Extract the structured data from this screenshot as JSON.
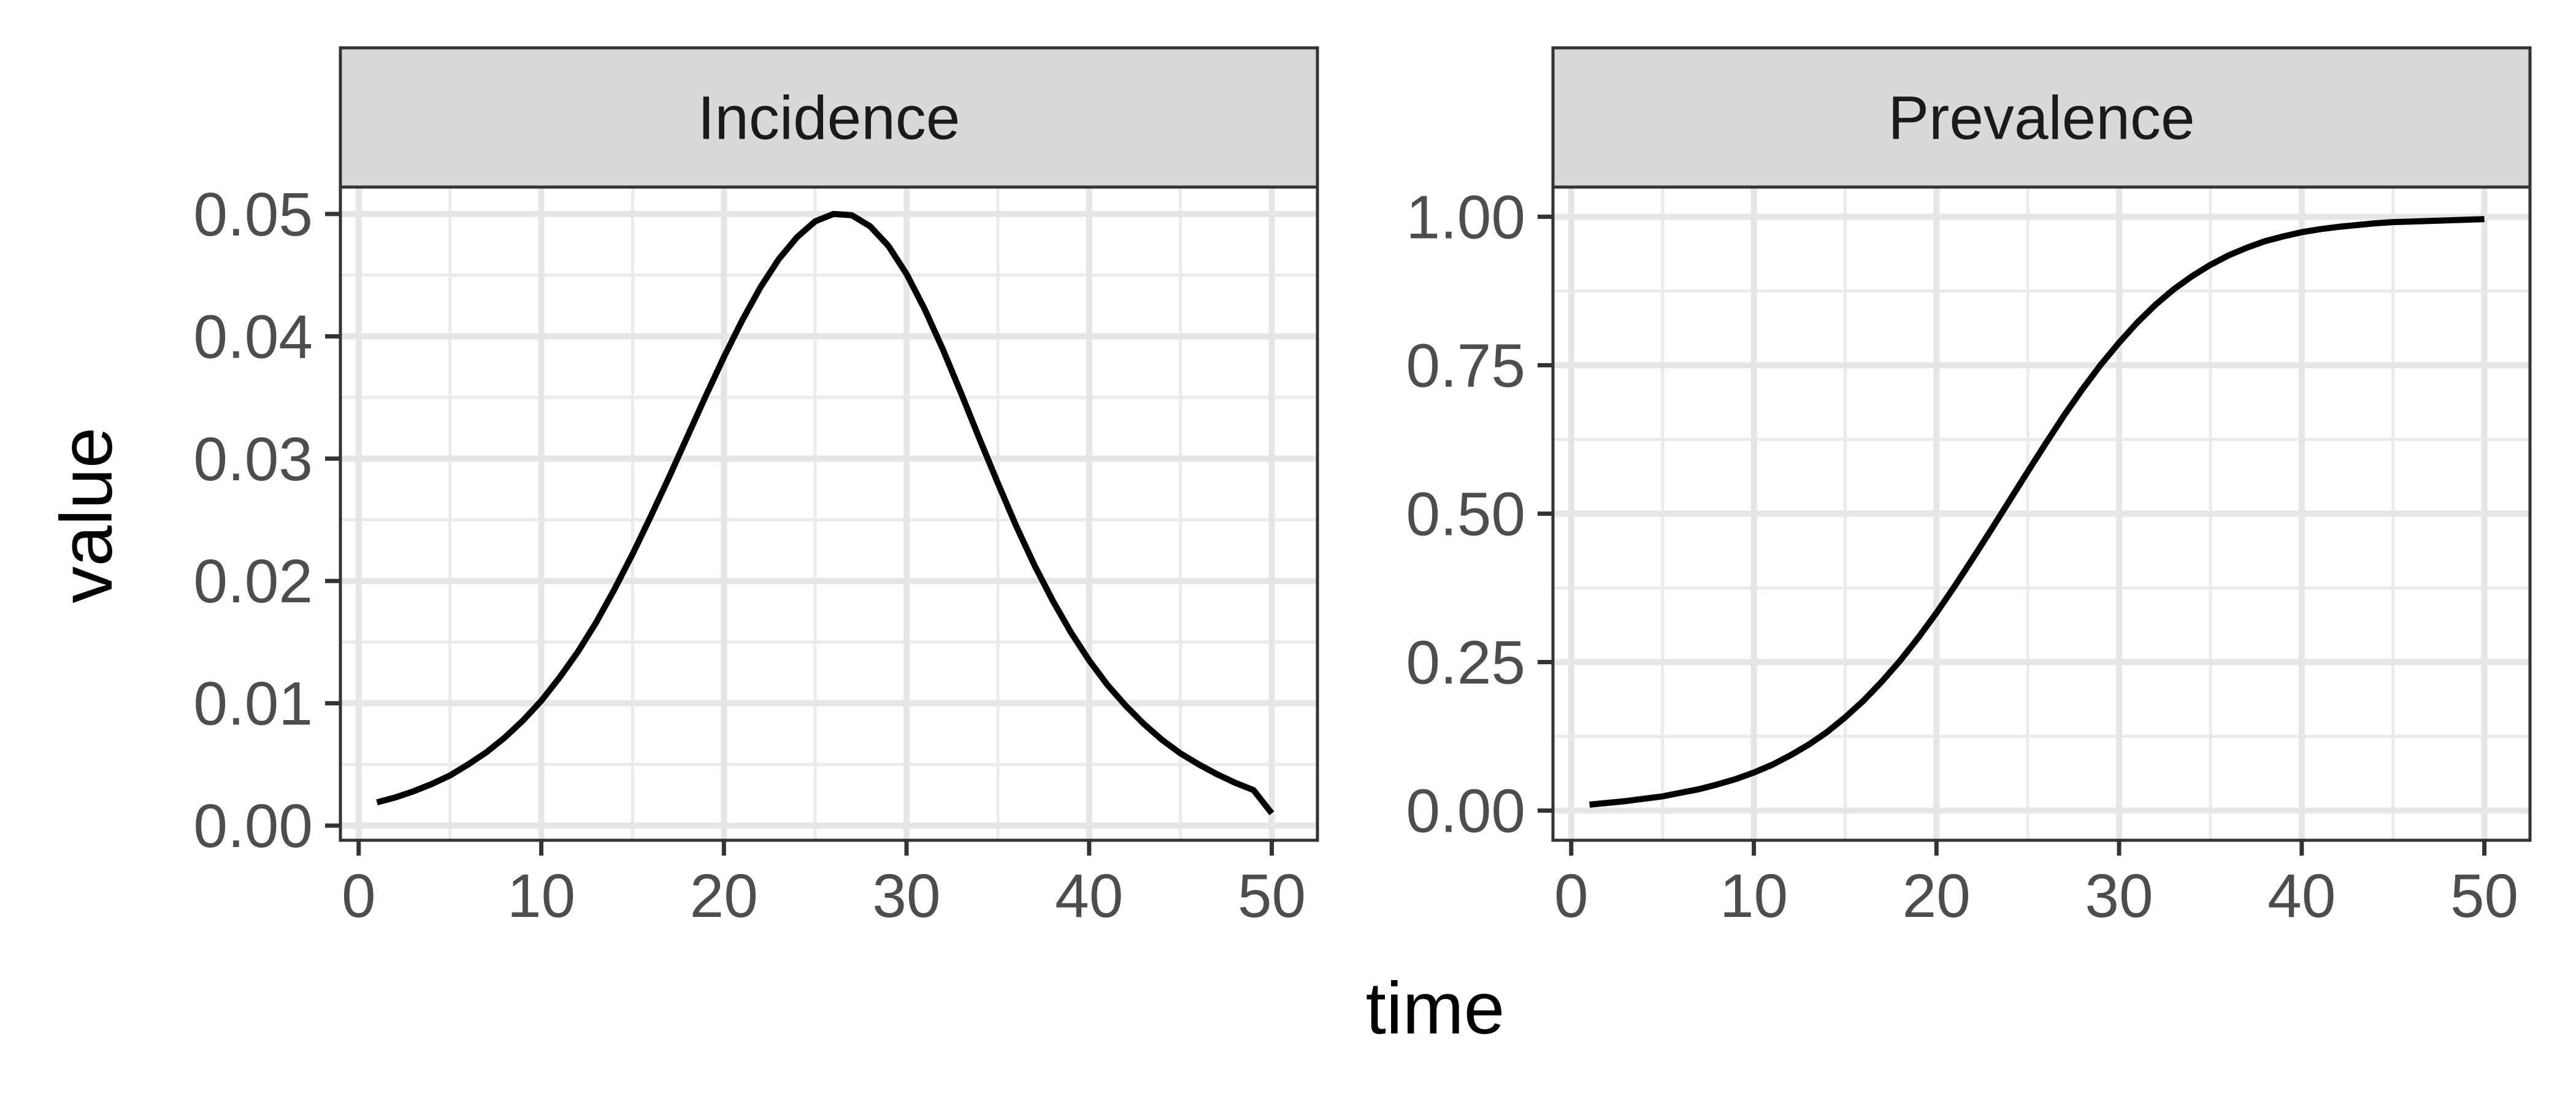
{
  "chart_data": {
    "type": "line",
    "xlabel": "time",
    "ylabel": "value",
    "grid": true,
    "legend": "none",
    "line_color": "#000000",
    "panels": [
      {
        "title": "Incidence",
        "xlim": [
          -1,
          52.5
        ],
        "ylim": [
          -0.0012,
          0.0522
        ],
        "xticks": [
          0,
          10,
          20,
          30,
          40,
          50
        ],
        "xtick_labels": [
          "0",
          "10",
          "20",
          "30",
          "40",
          "50"
        ],
        "yticks": [
          0,
          0.01,
          0.02,
          0.03,
          0.04,
          0.05
        ],
        "ytick_labels": [
          "0.00",
          "0.01",
          "0.02",
          "0.03",
          "0.04",
          "0.05"
        ],
        "x": [
          1,
          2,
          3,
          4,
          5,
          6,
          7,
          8,
          9,
          10,
          11,
          12,
          13,
          14,
          15,
          16,
          17,
          18,
          19,
          20,
          21,
          22,
          23,
          24,
          25,
          26,
          27,
          28,
          29,
          30,
          31,
          32,
          33,
          34,
          35,
          36,
          37,
          38,
          39,
          40,
          41,
          42,
          43,
          44,
          45,
          46,
          47,
          48,
          49,
          50
        ],
        "y": [
          0.0019,
          0.0023,
          0.0028,
          0.0034,
          0.0041,
          0.005,
          0.006,
          0.0072,
          0.0086,
          0.0102,
          0.0121,
          0.0142,
          0.0166,
          0.0193,
          0.0222,
          0.0253,
          0.0285,
          0.0318,
          0.0351,
          0.0383,
          0.0413,
          0.044,
          0.0463,
          0.0481,
          0.0494,
          0.05,
          0.0499,
          0.049,
          0.0474,
          0.0451,
          0.0422,
          0.0389,
          0.0353,
          0.0316,
          0.028,
          0.0245,
          0.0213,
          0.0184,
          0.0158,
          0.0135,
          0.0115,
          0.0098,
          0.0083,
          0.007,
          0.0059,
          0.005,
          0.0042,
          0.0035,
          0.0029,
          0.001
        ]
      },
      {
        "title": "Prevalence",
        "xlim": [
          -1,
          52.5
        ],
        "ylim": [
          -0.05,
          1.05
        ],
        "xticks": [
          0,
          10,
          20,
          30,
          40,
          50
        ],
        "xtick_labels": [
          "0",
          "10",
          "20",
          "30",
          "40",
          "50"
        ],
        "yticks": [
          0,
          0.25,
          0.5,
          0.75,
          1
        ],
        "ytick_labels": [
          "0.00",
          "0.25",
          "0.50",
          "0.75",
          "1.00"
        ],
        "x": [
          1,
          2,
          3,
          4,
          5,
          6,
          7,
          8,
          9,
          10,
          11,
          12,
          13,
          14,
          15,
          16,
          17,
          18,
          19,
          20,
          21,
          22,
          23,
          24,
          25,
          26,
          27,
          28,
          29,
          30,
          31,
          32,
          33,
          34,
          35,
          36,
          37,
          38,
          39,
          40,
          41,
          42,
          43,
          44,
          45,
          46,
          47,
          48,
          49,
          50
        ],
        "y": [
          0.01,
          0.013,
          0.016,
          0.02,
          0.024,
          0.03,
          0.036,
          0.044,
          0.053,
          0.064,
          0.077,
          0.093,
          0.111,
          0.132,
          0.157,
          0.185,
          0.217,
          0.252,
          0.291,
          0.333,
          0.378,
          0.425,
          0.473,
          0.522,
          0.571,
          0.619,
          0.666,
          0.71,
          0.751,
          0.788,
          0.822,
          0.852,
          0.878,
          0.9,
          0.919,
          0.935,
          0.948,
          0.959,
          0.967,
          0.974,
          0.979,
          0.983,
          0.986,
          0.989,
          0.991,
          0.992,
          0.993,
          0.994,
          0.995,
          0.996
        ]
      }
    ]
  }
}
